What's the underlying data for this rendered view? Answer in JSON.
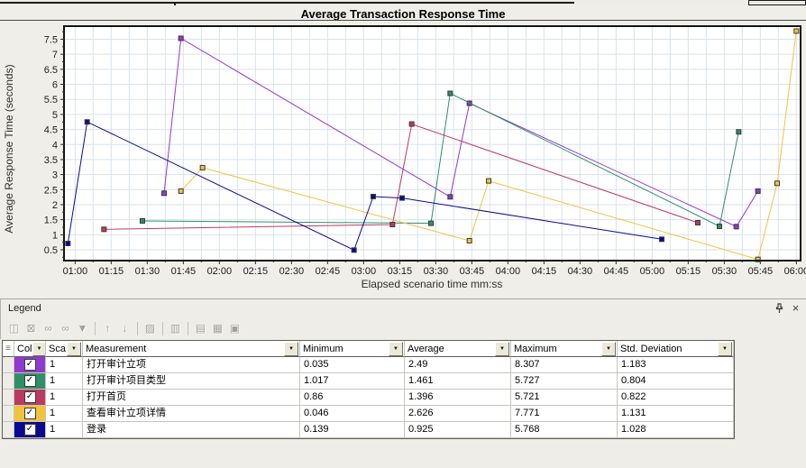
{
  "chart_data": {
    "type": "line",
    "title": "Average Transaction Response Time",
    "xlabel": "Elapsed scenario time mm:ss",
    "ylabel": "Average Response Time (seconds)",
    "x_tick_labels": [
      "01:00",
      "01:15",
      "01:30",
      "01:45",
      "02:00",
      "02:15",
      "02:30",
      "02:45",
      "03:00",
      "03:15",
      "03:30",
      "03:45",
      "04:00",
      "04:15",
      "04:30",
      "04:45",
      "05:00",
      "05:15",
      "05:30",
      "05:45",
      "06:00"
    ],
    "x_tick_start_s": 60,
    "x_tick_step_s": 15,
    "y_ticks": [
      "0.5",
      "1",
      "1.5",
      "2",
      "2.5",
      "3",
      "3.5",
      "4",
      "4.5",
      "5",
      "5.5",
      "6",
      "6.5",
      "7",
      "7.5"
    ],
    "x_domain_s": [
      55.4,
      361.8
    ],
    "y_domain": [
      0.14,
      7.92
    ],
    "grid": {
      "x_minor_step_s": 7.5,
      "y_step": 0.5,
      "y_minor_tick": 0.25,
      "gridlines": true
    },
    "legend_position": "bottom-table",
    "series": [
      {
        "name": "打开审计立项",
        "color": "#9138d2",
        "points": [
          [
            97,
            2.38
          ],
          [
            104,
            7.53
          ],
          [
            216,
            2.26
          ],
          [
            224,
            5.37
          ],
          [
            335,
            1.27
          ],
          [
            344,
            2.45
          ]
        ]
      },
      {
        "name": "打开审计项目类型",
        "color": "#2e8f68",
        "points": [
          [
            88,
            1.46
          ],
          [
            208,
            1.38
          ],
          [
            216,
            5.7
          ],
          [
            328,
            1.28
          ],
          [
            336,
            4.42
          ]
        ]
      },
      {
        "name": "打开首页",
        "color": "#bc3a62",
        "points": [
          [
            72,
            1.18
          ],
          [
            192,
            1.34
          ],
          [
            200,
            4.68
          ],
          [
            319,
            1.4
          ]
        ]
      },
      {
        "name": "查看审计立项详情",
        "color": "#f0c33c",
        "points": [
          [
            104,
            2.45
          ],
          [
            113,
            3.23
          ],
          [
            224,
            0.8
          ],
          [
            232,
            2.79
          ],
          [
            344,
            0.18
          ],
          [
            352,
            2.71
          ],
          [
            360,
            7.77
          ]
        ]
      },
      {
        "name": "登录",
        "color": "#0a0a90",
        "points": [
          [
            57,
            0.71
          ],
          [
            65,
            4.75
          ],
          [
            176,
            0.49
          ],
          [
            184,
            2.27
          ],
          [
            196,
            2.22
          ],
          [
            304,
            0.85
          ]
        ]
      }
    ]
  },
  "legend": {
    "title": "Legend",
    "close_glyph": "×",
    "toolbar": [
      {
        "name": "hide-graph-icon",
        "glyph": "◫"
      },
      {
        "name": "hide-measurement-icon",
        "glyph": "⊠"
      },
      {
        "name": "show-measurement-icon",
        "glyph": "∞"
      },
      {
        "name": "show-all-measurements-icon",
        "glyph": "∞"
      },
      {
        "name": "filter-icon",
        "glyph": "▼"
      },
      {
        "separator": true
      },
      {
        "name": "sort-ascending-icon",
        "glyph": "↑"
      },
      {
        "name": "sort-descending-icon",
        "glyph": "↓"
      },
      {
        "separator": true
      },
      {
        "name": "configure-measurements-icon",
        "glyph": "▨"
      },
      {
        "separator": true
      },
      {
        "name": "select-columns-icon",
        "glyph": "▥"
      },
      {
        "separator": true
      },
      {
        "name": "copy-icon",
        "glyph": "▤"
      },
      {
        "name": "export-icon",
        "glyph": "▦"
      },
      {
        "name": "save-icon",
        "glyph": "▣"
      }
    ],
    "table": {
      "columns": [
        {
          "label": "",
          "icon": "row-selector-icon",
          "glyph": "≡"
        },
        {
          "label": "Col",
          "dropdown": true
        },
        {
          "label": "Sca",
          "dropdown": true
        },
        {
          "label": "Measurement",
          "dropdown": true
        },
        {
          "label": "Minimum",
          "dropdown": true
        },
        {
          "label": "Average",
          "dropdown": true
        },
        {
          "label": "Maximum",
          "dropdown": true
        },
        {
          "label": "Std. Deviation",
          "dropdown": true
        }
      ],
      "rows": [
        {
          "color": "#9138d2",
          "checked": true,
          "scale": "1",
          "measurement": "打开审计立项",
          "minimum": "0.035",
          "average": "2.49",
          "maximum": "8.307",
          "std_deviation": "1.183"
        },
        {
          "color": "#2e8f68",
          "checked": true,
          "scale": "1",
          "measurement": "打开审计项目类型",
          "minimum": "1.017",
          "average": "1.461",
          "maximum": "5.727",
          "std_deviation": "0.804"
        },
        {
          "color": "#bc3a62",
          "checked": true,
          "scale": "1",
          "measurement": "打开首页",
          "minimum": "0.86",
          "average": "1.396",
          "maximum": "5.721",
          "std_deviation": "0.822"
        },
        {
          "color": "#f0c33c",
          "checked": true,
          "scale": "1",
          "measurement": "查看审计立项详情",
          "minimum": "0.046",
          "average": "2.626",
          "maximum": "7.771",
          "std_deviation": "1.131"
        },
        {
          "color": "#0a0a90",
          "checked": true,
          "scale": "1",
          "measurement": "登录",
          "minimum": "0.139",
          "average": "0.925",
          "maximum": "5.768",
          "std_deviation": "1.028"
        }
      ]
    }
  }
}
